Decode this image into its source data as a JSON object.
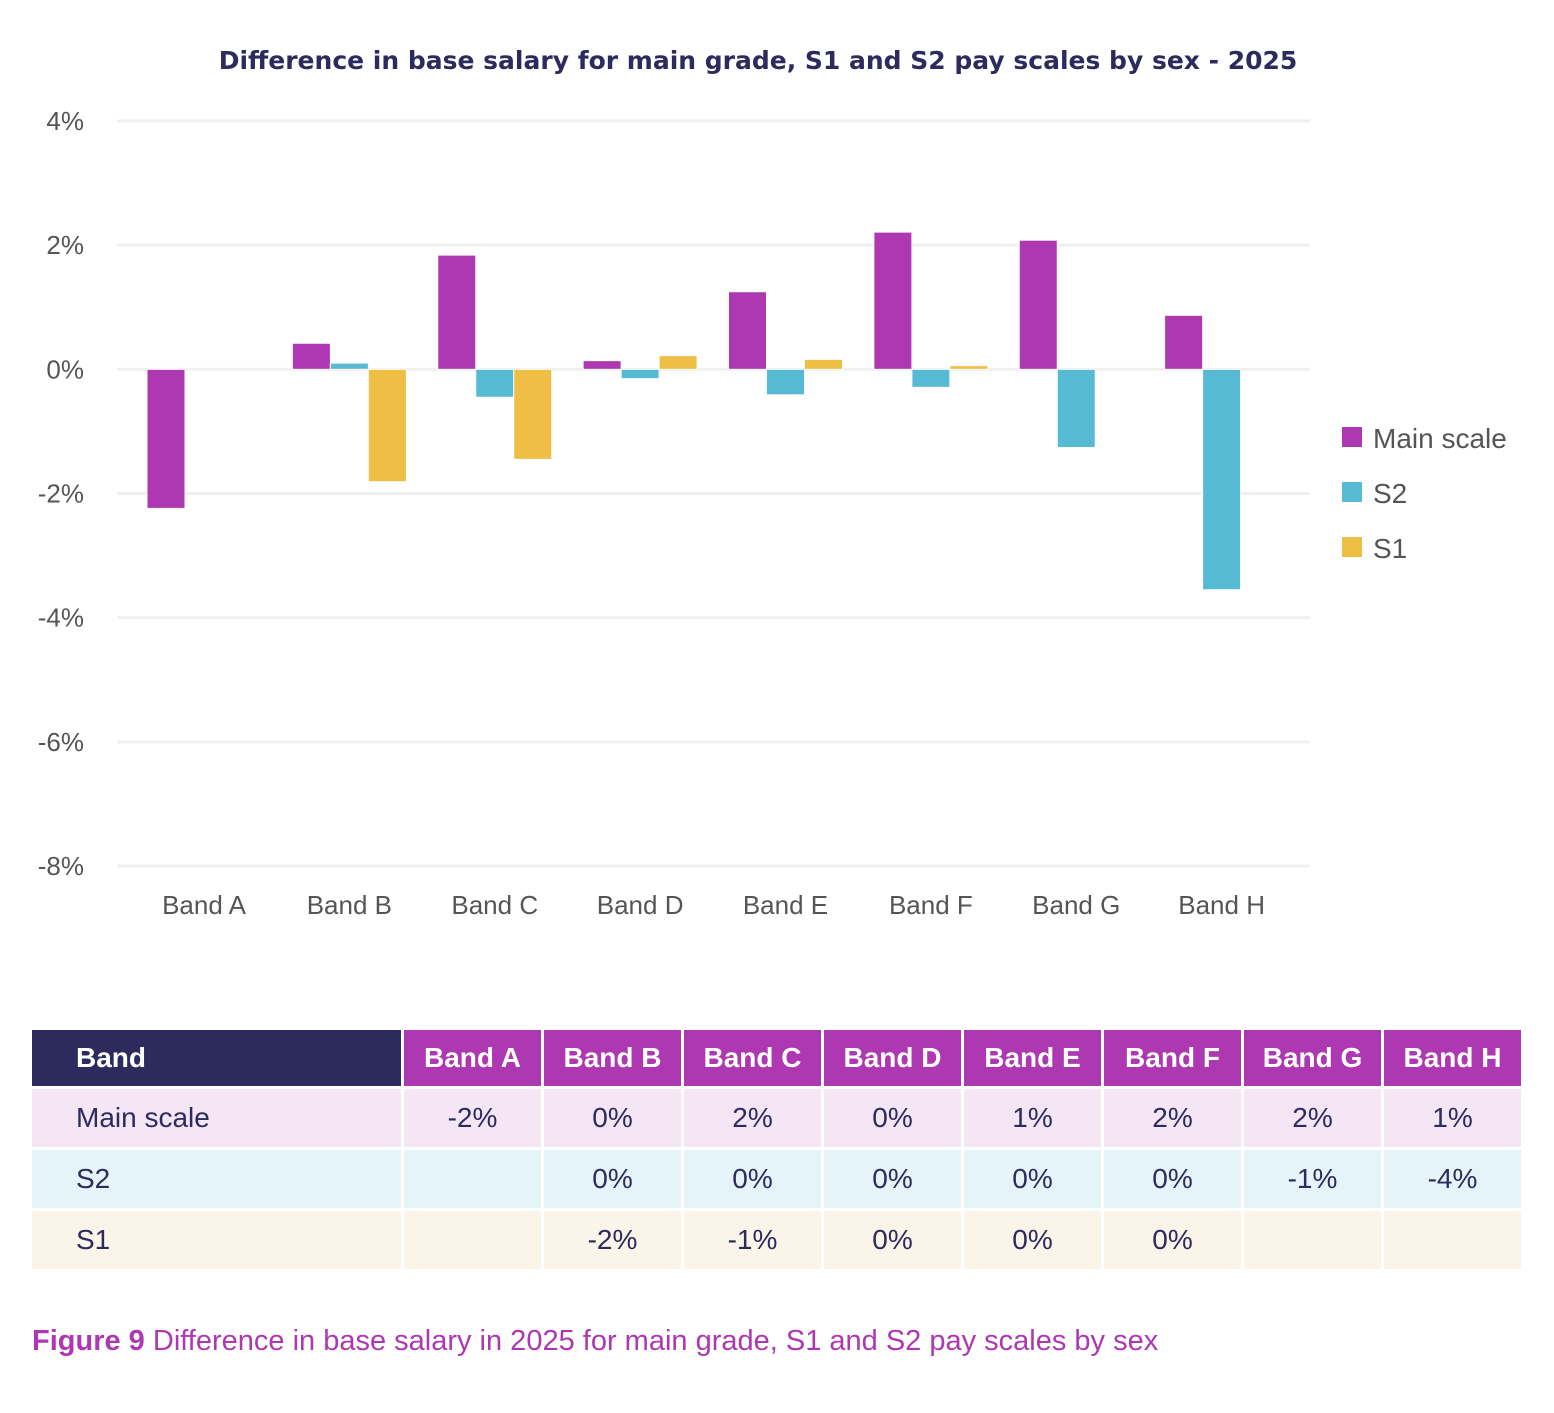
{
  "chart_data": {
    "type": "bar",
    "title": "Difference in base salary for main grade, S1 and S2 pay scales by sex - 2025",
    "xlabel": "",
    "ylabel": "",
    "ylim": [
      -8,
      4
    ],
    "yticks": [
      4,
      2,
      0,
      -2,
      -4,
      -6,
      -8
    ],
    "ytick_labels": [
      "4%",
      "2%",
      "0%",
      "-2%",
      "-4%",
      "-6%",
      "-8%"
    ],
    "grid": true,
    "legend_position": "right",
    "categories": [
      "Band A",
      "Band B",
      "Band C",
      "Band D",
      "Band E",
      "Band F",
      "Band G",
      "Band H"
    ],
    "series": [
      {
        "name": "Main scale",
        "color": "#ad38b1",
        "values": [
          -2.24,
          0.42,
          1.84,
          0.14,
          1.25,
          2.21,
          2.08,
          0.87
        ]
      },
      {
        "name": "S2",
        "color": "#57bad4",
        "values": [
          null,
          0.1,
          -0.45,
          -0.15,
          -0.41,
          -0.29,
          -1.26,
          -3.55
        ]
      },
      {
        "name": "S1",
        "color": "#efbe45",
        "values": [
          null,
          -1.81,
          -1.45,
          0.22,
          0.16,
          0.06,
          null,
          null
        ]
      }
    ]
  },
  "table": {
    "header_label": "Band",
    "columns": [
      "Band A",
      "Band B",
      "Band C",
      "Band D",
      "Band E",
      "Band F",
      "Band G",
      "Band H"
    ],
    "rows": [
      {
        "label": "Main scale",
        "cells": [
          "-2%",
          "0%",
          "2%",
          "0%",
          "1%",
          "2%",
          "2%",
          "1%"
        ]
      },
      {
        "label": "S2",
        "cells": [
          "",
          "0%",
          "0%",
          "0%",
          "0%",
          "0%",
          "-1%",
          "-4%"
        ]
      },
      {
        "label": "S1",
        "cells": [
          "",
          "-2%",
          "-1%",
          "0%",
          "0%",
          "0%",
          "",
          ""
        ]
      }
    ]
  },
  "caption": {
    "figure_label": "Figure 9",
    "text": " Difference in base salary in 2025 for main grade, S1 and S2 pay scales by sex"
  },
  "colors": {
    "main_scale": "#ad38b1",
    "s2": "#57bad4",
    "s1": "#efbe45",
    "navy": "#2d2b5e"
  }
}
